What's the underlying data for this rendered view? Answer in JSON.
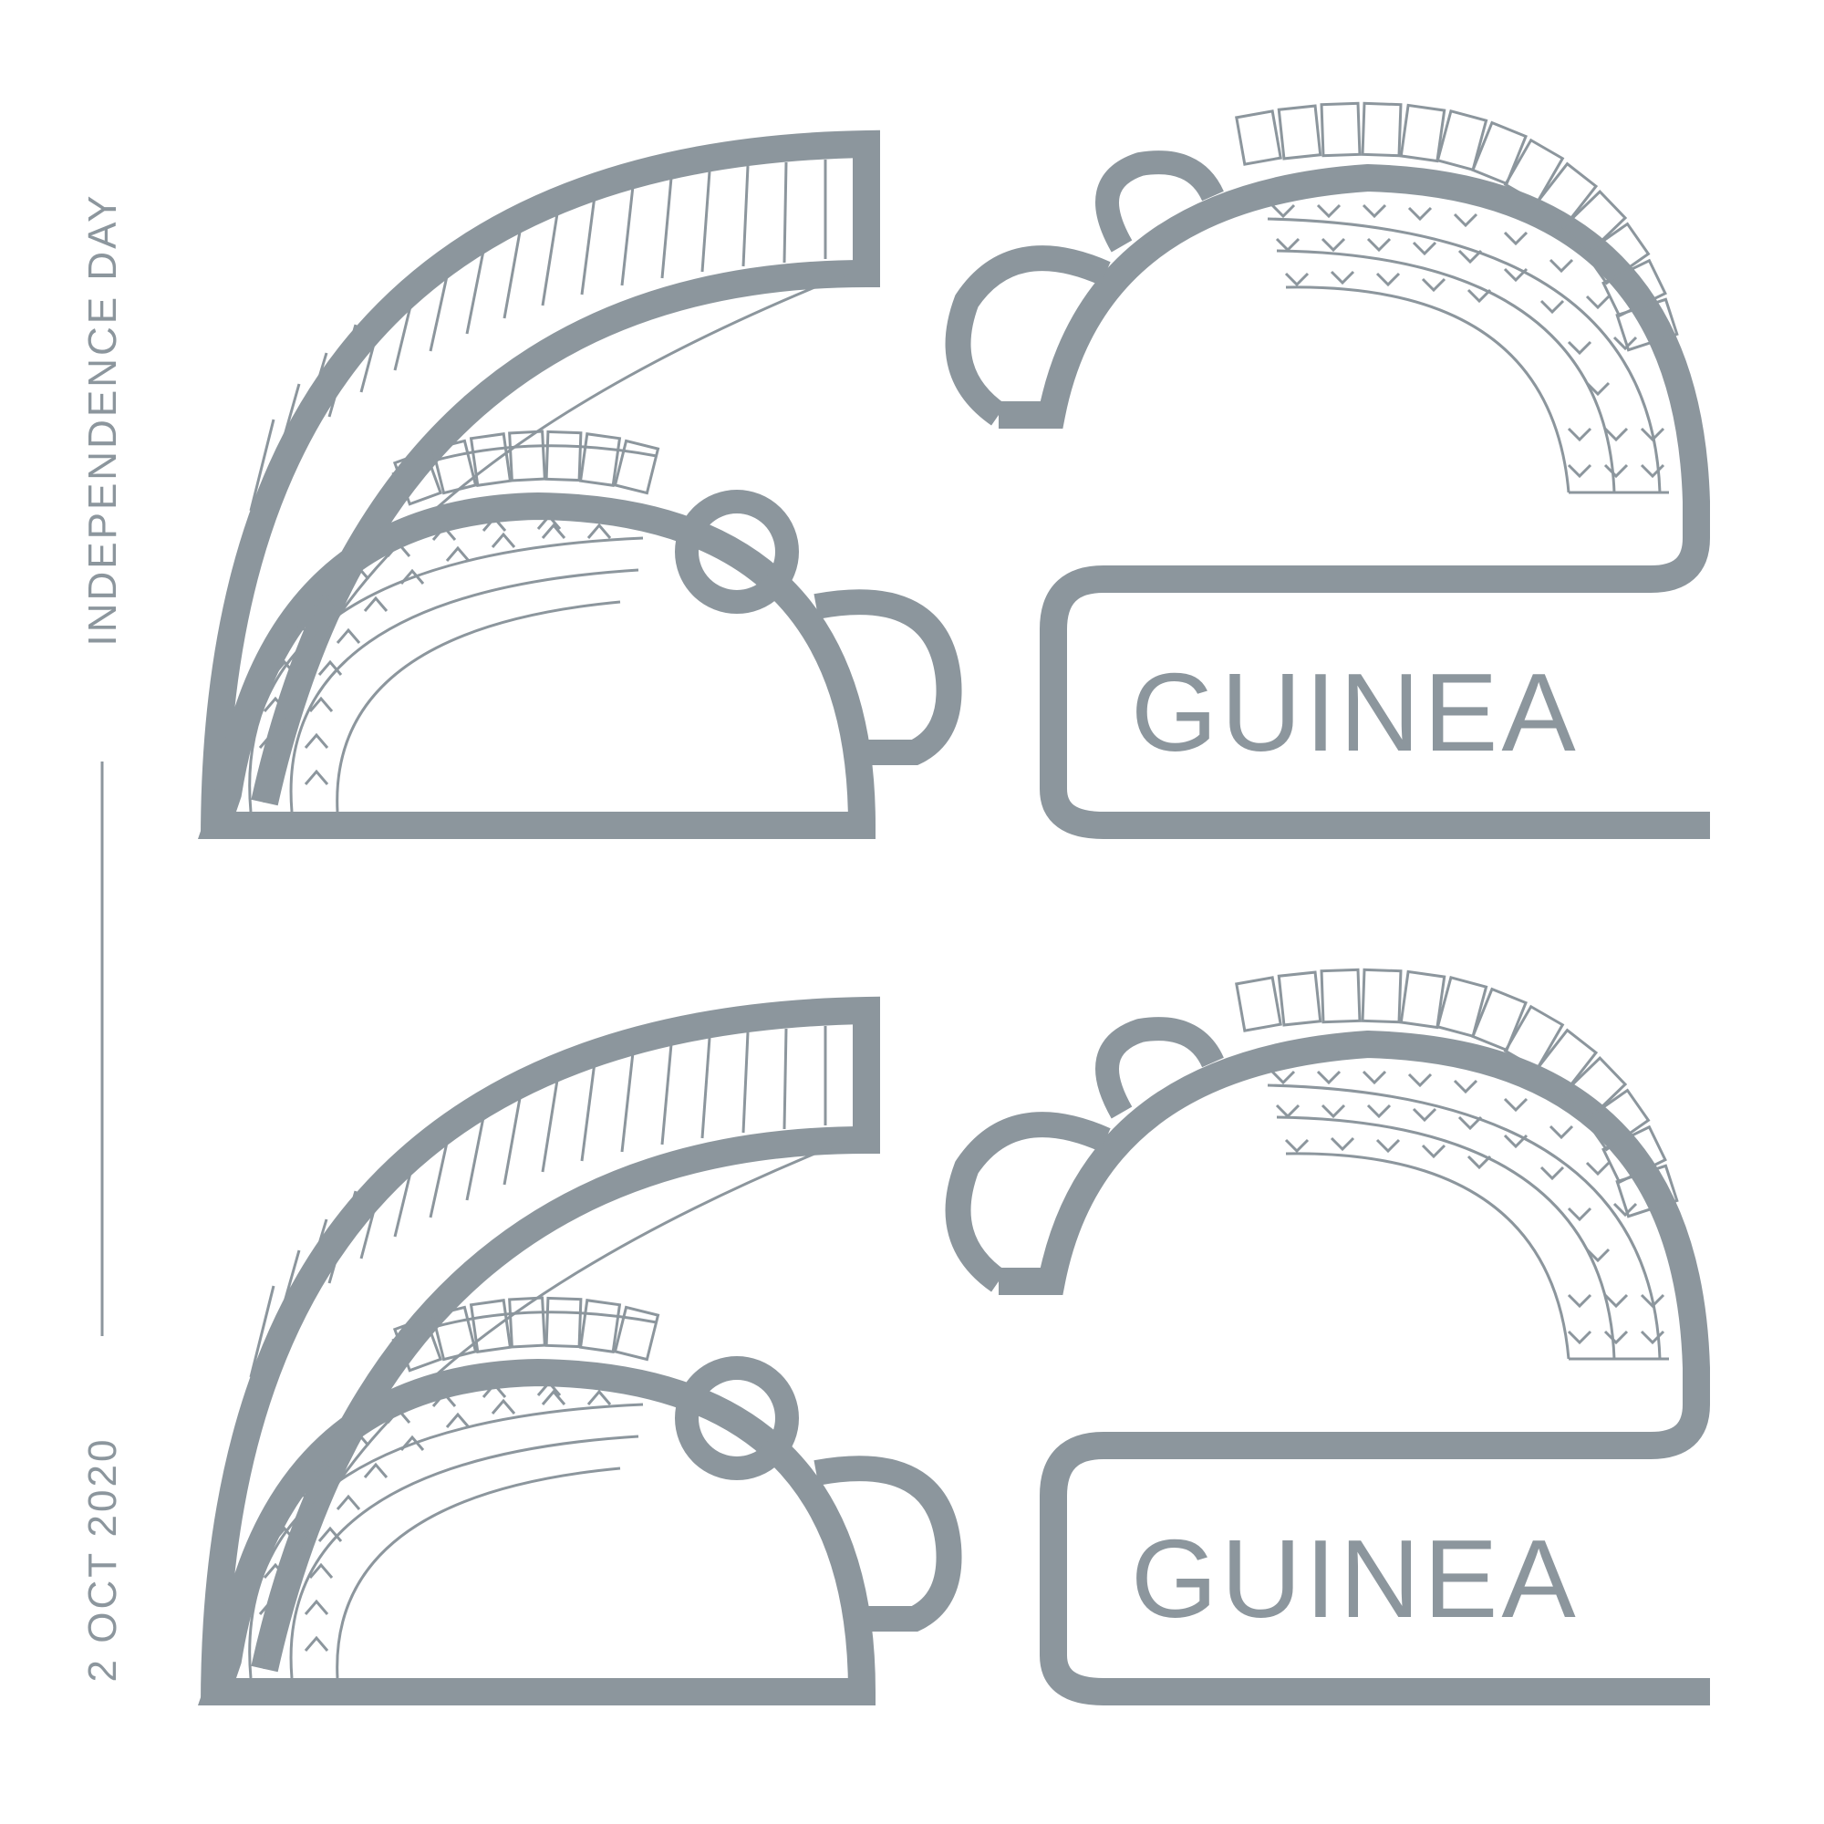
{
  "side": {
    "event": "INDEPENDENCE DAY",
    "date": "2 OCT 2020"
  },
  "country_top": "GUINEA",
  "country_bottom": "GUINEA",
  "colors": {
    "background": "#ffffff",
    "ink": "#8c969d"
  },
  "motif": "pair of stylized mirrored heads with braided hair and crested headdress"
}
